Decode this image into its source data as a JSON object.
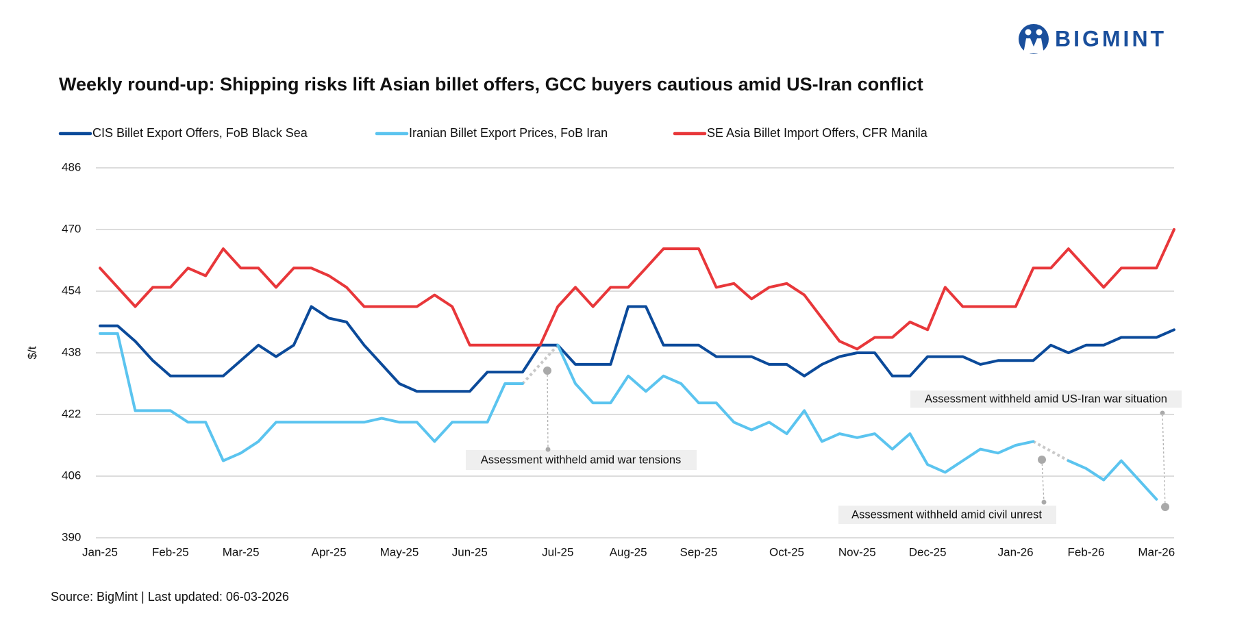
{
  "header": {
    "logo": "BIGMINT"
  },
  "chart_data": {
    "type": "line",
    "title": "Weekly round-up: Shipping risks lift Asian billet offers, GCC buyers cautious amid US-Iran conflict",
    "y_label": "$/t",
    "source": "Source: BigMint | Last updated: 06-03-2026",
    "categories": [
      "Jan-25",
      null,
      null,
      null,
      "Feb-25",
      null,
      null,
      null,
      "Mar-25",
      null,
      null,
      null,
      null,
      "Apr-25",
      null,
      null,
      null,
      "May-25",
      null,
      null,
      null,
      "Jun-25",
      null,
      null,
      null,
      null,
      "Jul-25",
      null,
      null,
      null,
      "Aug-25",
      null,
      null,
      null,
      "Sep-25",
      null,
      null,
      null,
      null,
      "Oct-25",
      null,
      null,
      null,
      "Nov-25",
      null,
      null,
      null,
      "Dec-25",
      null,
      null,
      null,
      null,
      "Jan-26",
      null,
      null,
      null,
      "Feb-26",
      null,
      null,
      null,
      "Mar-26",
      null
    ],
    "series": [
      {
        "name": "CIS Billet Export Offers, FoB Black Sea",
        "color": "#0b4a9a",
        "values": [
          445,
          445,
          441,
          436,
          432,
          432,
          432,
          432,
          436,
          440,
          437,
          440,
          450,
          447,
          446,
          440,
          435,
          430,
          428,
          428,
          428,
          428,
          433,
          433,
          433,
          440,
          440,
          435,
          435,
          435,
          450,
          450,
          440,
          440,
          440,
          437,
          437,
          437,
          435,
          435,
          432,
          435,
          437,
          438,
          438,
          432,
          432,
          437,
          437,
          437,
          435,
          436,
          436,
          436,
          440,
          438,
          440,
          440,
          442,
          442,
          442,
          444
        ]
      },
      {
        "name": "Iranian Billet Export Prices, FoB Iran",
        "color": "#5bc4ef",
        "values": [
          443,
          443,
          423,
          423,
          423,
          420,
          420,
          410,
          412,
          415,
          420,
          420,
          420,
          420,
          420,
          420,
          421,
          420,
          420,
          415,
          420,
          420,
          420,
          430,
          430,
          null,
          440,
          430,
          425,
          425,
          432,
          428,
          432,
          430,
          425,
          425,
          420,
          418,
          420,
          417,
          423,
          415,
          417,
          416,
          417,
          413,
          417,
          409,
          407,
          410,
          413,
          412,
          414,
          415,
          null,
          410,
          408,
          405,
          410,
          405,
          400,
          null
        ]
      },
      {
        "name": "SE Asia Billet Import Offers, CFR Manila",
        "color": "#e8373a",
        "values": [
          460,
          455,
          450,
          455,
          455,
          460,
          458,
          465,
          460,
          460,
          455,
          460,
          460,
          458,
          455,
          450,
          450,
          450,
          450,
          453,
          450,
          440,
          440,
          440,
          440,
          440,
          450,
          455,
          450,
          455,
          455,
          460,
          465,
          465,
          465,
          455,
          456,
          452,
          455,
          456,
          453,
          447,
          441,
          439,
          442,
          442,
          446,
          444,
          455,
          450,
          450,
          450,
          450,
          460,
          460,
          465,
          460,
          455,
          460,
          460,
          460,
          470
        ]
      }
    ],
    "ylim": [
      390,
      486
    ],
    "yticks": [
      390,
      406,
      422,
      438,
      454,
      470,
      486
    ],
    "grid": true,
    "gap_color": "#c9c9c9",
    "annotations": [
      "Assessment withheld amid  war tensions",
      "Assessment withheld amid US-Iran war situation",
      "Assessment withheld amid civil unrest"
    ]
  }
}
